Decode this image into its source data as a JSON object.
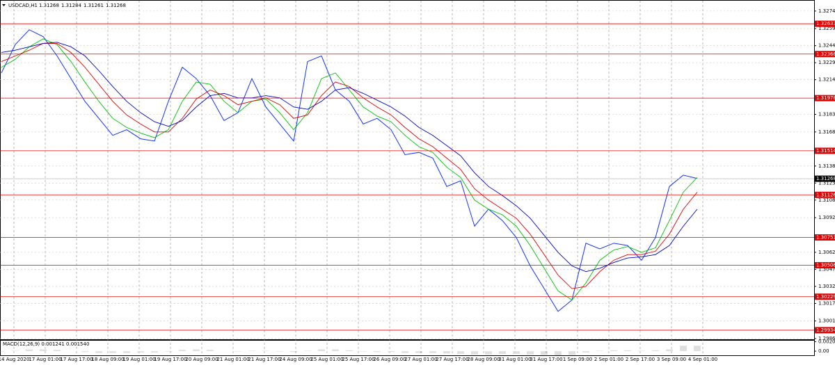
{
  "header": {
    "symbol": "USDCAD,H1",
    "ohlc": [
      1.31268,
      1.31284,
      1.31261,
      1.31268
    ]
  },
  "chart_data": [
    {
      "type": "line",
      "ylim": [
        1.29854,
        1.3283
      ],
      "yticks": [
        1.32745,
        {
          "value": 1.3259,
          "label": "1.32590"
        },
        {
          "value": 1.3244,
          "label": "1.32440"
        },
        {
          "value": 1.3229,
          "label": "1.32290"
        },
        {
          "value": 1.3214,
          "label": "1.32140"
        },
        1.31835,
        {
          "value": 1.3168,
          "label": "1.31680"
        },
        {
          "value": 1.3138,
          "label": "1.31380"
        },
        {
          "value": 1.3123,
          "label": "1.31230"
        },
        {
          "value": 1.3108,
          "label": "1.31080"
        },
        1.30925,
        {
          "value": 1.3062,
          "label": "1.30620"
        },
        {
          "value": 1.3047,
          "label": "1.30470"
        },
        {
          "value": 1.3032,
          "label": "1.30320"
        },
        {
          "value": 1.3017,
          "label": "1.30170"
        },
        1.30015,
        {
          "value": 1.2986,
          "label": "1.29860"
        }
      ],
      "xticks": [
        "14 Aug 2020",
        "17 Aug 01:00",
        "17 Aug 17:00",
        "18 Aug 09:00",
        "19 Aug 01:00",
        "19 Aug 17:00",
        "20 Aug 09:00",
        "21 Aug 01:00",
        "21 Aug 17:00",
        "24 Aug 09:00",
        "25 Aug 01:00",
        "25 Aug 17:00",
        "26 Aug 09:00",
        "27 Aug 01:00",
        "27 Aug 17:00",
        "28 Aug 09:00",
        "31 Aug 01:00",
        "31 Aug 17:00",
        "1 Sep 09:00",
        "2 Sep 01:00",
        "2 Sep 17:00",
        "3 Sep 09:00",
        "4 Sep 01:00"
      ],
      "grid": true,
      "levels": [
        1.32633,
        1.32366,
        1.31978,
        1.31514,
        1.31126,
        1.30751,
        1.30506,
        1.30229,
        1.29934
      ],
      "levels_color": "#e00000",
      "current_price": 1.31268,
      "series": [
        {
          "color": "#1030ff",
          "values": [
            1.322,
            1.3245,
            1.3258,
            1.3252,
            1.3235,
            1.3215,
            1.3195,
            1.318,
            1.3165,
            1.317,
            1.3162,
            1.316,
            1.3195,
            1.3225,
            1.3215,
            1.32,
            1.3178,
            1.3185,
            1.3215,
            1.319,
            1.3175,
            1.316,
            1.323,
            1.3235,
            1.3205,
            1.3195,
            1.3175,
            1.318,
            1.317,
            1.3148,
            1.315,
            1.3145,
            1.312,
            1.3125,
            1.3085,
            1.31,
            1.309,
            1.3075,
            1.305,
            1.303,
            1.301,
            1.302,
            1.307,
            1.3065,
            1.307,
            1.3068,
            1.3055,
            1.3075,
            1.312,
            1.313,
            1.3127
          ]
        },
        {
          "color": "#00c000",
          "values": [
            1.3225,
            1.3232,
            1.3243,
            1.325,
            1.3245,
            1.323,
            1.3212,
            1.3195,
            1.318,
            1.3172,
            1.3167,
            1.3163,
            1.317,
            1.3195,
            1.3212,
            1.321,
            1.3195,
            1.3185,
            1.3195,
            1.3197,
            1.3185,
            1.317,
            1.3185,
            1.3215,
            1.322,
            1.3205,
            1.319,
            1.3182,
            1.3177,
            1.3165,
            1.3155,
            1.315,
            1.3137,
            1.3128,
            1.3108,
            1.31,
            1.3095,
            1.3085,
            1.3068,
            1.3048,
            1.3028,
            1.302,
            1.3035,
            1.3055,
            1.3064,
            1.3067,
            1.3062,
            1.3066,
            1.309,
            1.3115,
            1.3128
          ]
        },
        {
          "color": "#e00000",
          "values": [
            1.323,
            1.3235,
            1.324,
            1.3246,
            1.3246,
            1.3238,
            1.3225,
            1.321,
            1.3195,
            1.3183,
            1.3175,
            1.3168,
            1.3168,
            1.318,
            1.3197,
            1.3205,
            1.32,
            1.3192,
            1.3195,
            1.3198,
            1.3192,
            1.318,
            1.3183,
            1.32,
            1.3212,
            1.3208,
            1.3198,
            1.319,
            1.3183,
            1.3172,
            1.3162,
            1.3155,
            1.3145,
            1.3135,
            1.3118,
            1.3108,
            1.31,
            1.3092,
            1.3078,
            1.306,
            1.3042,
            1.303,
            1.3032,
            1.3045,
            1.3055,
            1.306,
            1.306,
            1.3063,
            1.3078,
            1.31,
            1.3115
          ]
        },
        {
          "color": "#0000c8",
          "values": [
            1.3238,
            1.324,
            1.3243,
            1.3246,
            1.3247,
            1.3243,
            1.3235,
            1.3222,
            1.3208,
            1.3195,
            1.3185,
            1.3177,
            1.3173,
            1.3178,
            1.319,
            1.32,
            1.3202,
            1.3198,
            1.3198,
            1.32,
            1.3198,
            1.319,
            1.3188,
            1.3195,
            1.3205,
            1.3207,
            1.3202,
            1.3196,
            1.319,
            1.3182,
            1.3172,
            1.3165,
            1.3156,
            1.3147,
            1.3132,
            1.312,
            1.3112,
            1.3103,
            1.3092,
            1.3077,
            1.3062,
            1.305,
            1.3045,
            1.3048,
            1.3053,
            1.3057,
            1.3058,
            1.306,
            1.3068,
            1.3085,
            1.31
          ]
        }
      ]
    },
    {
      "type": "bar",
      "title": "MACD(12,26,9) 0.001241 0.001540",
      "ylim": [
        -0.0009,
        0.0023
      ],
      "yticks": [
        0.002087,
        {
          "value": 0,
          "label": "0.00"
        }
      ],
      "color": "#b0b0b0",
      "values": [
        -0.0001,
        0.0001,
        0.0004,
        0.0004,
        0.0003,
        0.0,
        -0.0002,
        -0.0004,
        -0.0004,
        -0.0004,
        -0.0003,
        -0.0003,
        -0.0001,
        0.0003,
        0.0004,
        0.0003,
        0.0,
        -0.0001,
        0.0001,
        0.0001,
        -0.0001,
        -0.0002,
        0.0001,
        0.0004,
        0.0004,
        0.0002,
        -0.0001,
        -0.0002,
        -0.0002,
        -0.0004,
        -0.0004,
        -0.0004,
        -0.0005,
        -0.0006,
        -0.0007,
        -0.0007,
        -0.0006,
        -0.0006,
        -0.0007,
        -0.0008,
        -0.0009,
        -0.0008,
        -0.0003,
        0.0001,
        0.0002,
        0.0002,
        0.0001,
        0.0002,
        0.0004,
        0.0012,
        0.0012
      ]
    }
  ]
}
